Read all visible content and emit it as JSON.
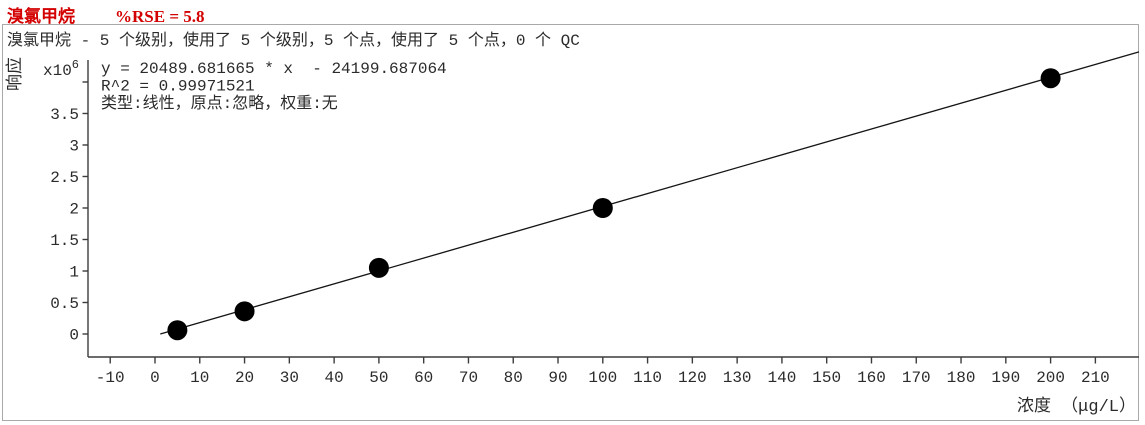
{
  "header": {
    "compound_name": "溴氯甲烷",
    "rse_text": "%RSE = 5.8",
    "title_color": "#d40000"
  },
  "panel": {
    "summary": "溴氯甲烷 - 5 个级别，使用了 5 个级别，5 个点，使用了 5 个点，0 个 QC"
  },
  "chart_data": {
    "type": "scatter",
    "title": "溴氯甲烷 %RSE = 5.8",
    "xlabel": "浓度 （μg/L）",
    "ylabel": "响应",
    "y_multiplier": {
      "base": "x10",
      "exp": "6"
    },
    "fit": {
      "equation_text": "y = 20489.681665 * x  - 24199.687064",
      "r2_text": "R^2 = 0.99971521",
      "type_text": "类型:线性，原点:忽略，权重:无",
      "slope": 20489.681665,
      "intercept": -24199.687064,
      "r_squared": 0.99971521
    },
    "points": {
      "concentration_ugL": [
        5,
        20,
        50,
        100,
        200
      ],
      "response_x1e6": [
        0.06,
        0.36,
        1.05,
        2.0,
        4.06
      ]
    },
    "x_ticks": [
      -10,
      0,
      10,
      20,
      30,
      40,
      50,
      60,
      70,
      80,
      90,
      100,
      110,
      120,
      130,
      140,
      150,
      160,
      170,
      180,
      190,
      200,
      210
    ],
    "y_ticks": {
      "values": [
        0,
        0.5,
        1,
        1.5,
        2,
        2.5,
        3,
        3.5,
        4
      ],
      "labels": [
        "0",
        "0.5",
        "1",
        "1.5",
        "2",
        "2.5",
        "3",
        "3.5",
        ""
      ]
    },
    "x_range": [
      -14.96,
      219.74
    ],
    "y_range_x1e6": [
      -0.365,
      4.349
    ],
    "grid": false,
    "legend": false,
    "colors": {
      "axis": "#3c3c3c",
      "text": "#2b2b2b",
      "point": "#000000",
      "line": "#141414",
      "panel_border": "#a9a9a9"
    }
  }
}
